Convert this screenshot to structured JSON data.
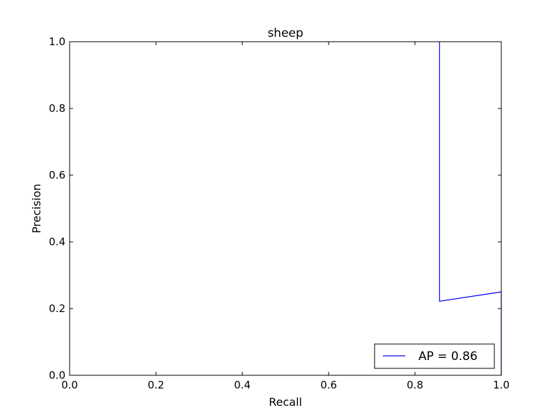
{
  "chart_data": {
    "type": "line",
    "title": "sheep",
    "xlabel": "Recall",
    "ylabel": "Precision",
    "xlim": [
      0.0,
      1.0
    ],
    "ylim": [
      0.0,
      1.0
    ],
    "xticks": [
      "0.0",
      "0.2",
      "0.4",
      "0.6",
      "0.8",
      "1.0"
    ],
    "yticks": [
      "0.0",
      "0.2",
      "0.4",
      "0.6",
      "0.8",
      "1.0"
    ],
    "grid": false,
    "legend_position": "lower-right",
    "series": [
      {
        "name": "AP = 0.86",
        "color": "#0000ff",
        "x": [
          0.857,
          0.857,
          1.0,
          1.0
        ],
        "y": [
          1.0,
          0.222,
          0.25,
          0.0
        ]
      }
    ]
  }
}
